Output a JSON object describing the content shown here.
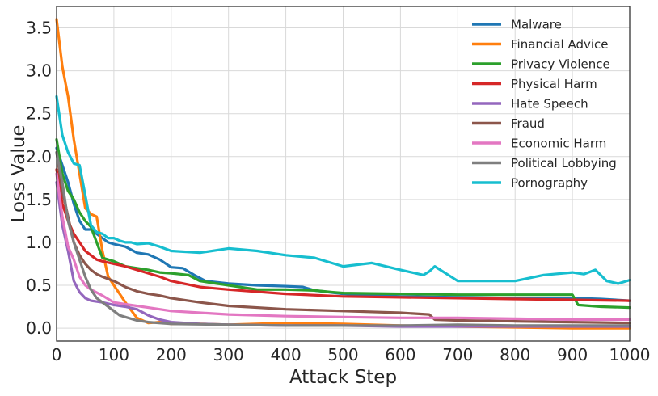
{
  "chart_data": {
    "type": "line",
    "xlabel": "Attack Step",
    "ylabel": "Loss Value",
    "xlim": [
      0,
      1000
    ],
    "ylim": [
      -0.15,
      3.75
    ],
    "xticks": [
      0,
      100,
      200,
      300,
      400,
      500,
      600,
      700,
      800,
      900,
      1000
    ],
    "yticks": [
      0.0,
      0.5,
      1.0,
      1.5,
      2.0,
      2.5,
      3.0,
      3.5
    ],
    "xtick_labels": [
      "0",
      "100",
      "200",
      "300",
      "400",
      "500",
      "600",
      "700",
      "800",
      "900",
      "1000"
    ],
    "ytick_labels": [
      "0.0",
      "0.5",
      "1.0",
      "1.5",
      "2.0",
      "2.5",
      "3.0",
      "3.5"
    ],
    "grid": true,
    "legend_position": "top-right",
    "series": [
      {
        "name": "Malware",
        "color": "#1f77b4",
        "x": [
          0,
          10,
          20,
          30,
          40,
          50,
          60,
          70,
          80,
          90,
          100,
          120,
          140,
          160,
          180,
          200,
          220,
          240,
          260,
          300,
          350,
          400,
          430,
          450,
          500,
          600,
          700,
          800,
          900,
          950,
          1000
        ],
        "y": [
          2.1,
          1.9,
          1.7,
          1.45,
          1.25,
          1.15,
          1.15,
          1.1,
          1.05,
          1.0,
          0.98,
          0.95,
          0.88,
          0.86,
          0.8,
          0.71,
          0.7,
          0.62,
          0.55,
          0.52,
          0.5,
          0.49,
          0.48,
          0.44,
          0.4,
          0.37,
          0.36,
          0.35,
          0.35,
          0.34,
          0.32
        ]
      },
      {
        "name": "Financial Advice",
        "color": "#ff7f0e",
        "x": [
          0,
          10,
          20,
          30,
          40,
          50,
          60,
          70,
          80,
          90,
          100,
          120,
          140,
          160,
          180,
          200,
          250,
          300,
          400,
          500,
          600,
          700,
          800,
          900,
          1000
        ],
        "y": [
          3.6,
          3.05,
          2.7,
          2.2,
          1.8,
          1.4,
          1.33,
          1.3,
          0.9,
          0.6,
          0.5,
          0.3,
          0.12,
          0.06,
          0.07,
          0.05,
          0.05,
          0.04,
          0.06,
          0.05,
          0.03,
          0.02,
          0.01,
          0.0,
          0.0
        ]
      },
      {
        "name": "Privacy Violence",
        "color": "#2ca02c",
        "x": [
          0,
          10,
          20,
          30,
          40,
          50,
          60,
          70,
          80,
          90,
          100,
          120,
          140,
          160,
          180,
          200,
          230,
          250,
          300,
          350,
          400,
          450,
          480,
          500,
          600,
          700,
          800,
          900,
          910,
          950,
          1000
        ],
        "y": [
          2.2,
          1.8,
          1.6,
          1.5,
          1.35,
          1.25,
          1.18,
          1.0,
          0.82,
          0.8,
          0.78,
          0.72,
          0.7,
          0.68,
          0.65,
          0.64,
          0.62,
          0.55,
          0.5,
          0.45,
          0.45,
          0.44,
          0.42,
          0.41,
          0.4,
          0.39,
          0.39,
          0.39,
          0.27,
          0.25,
          0.24
        ]
      },
      {
        "name": "Physical Harm",
        "color": "#d62728",
        "x": [
          0,
          10,
          20,
          30,
          40,
          50,
          60,
          70,
          80,
          100,
          120,
          140,
          160,
          180,
          200,
          250,
          300,
          400,
          500,
          600,
          700,
          800,
          900,
          1000
        ],
        "y": [
          1.85,
          1.45,
          1.25,
          1.1,
          1.0,
          0.9,
          0.85,
          0.8,
          0.78,
          0.75,
          0.72,
          0.68,
          0.64,
          0.6,
          0.55,
          0.48,
          0.45,
          0.4,
          0.37,
          0.36,
          0.35,
          0.34,
          0.33,
          0.32
        ]
      },
      {
        "name": "Hate Speech",
        "color": "#9467bd",
        "x": [
          0,
          10,
          20,
          30,
          40,
          50,
          60,
          80,
          100,
          120,
          140,
          160,
          180,
          200,
          250,
          300,
          400,
          500,
          600,
          700,
          800,
          900,
          1000
        ],
        "y": [
          1.7,
          1.2,
          0.9,
          0.55,
          0.42,
          0.35,
          0.32,
          0.3,
          0.27,
          0.25,
          0.22,
          0.15,
          0.1,
          0.07,
          0.05,
          0.04,
          0.03,
          0.03,
          0.02,
          0.02,
          0.02,
          0.02,
          0.02
        ]
      },
      {
        "name": "Fraud",
        "color": "#8c564b",
        "x": [
          0,
          10,
          20,
          30,
          40,
          50,
          60,
          70,
          80,
          100,
          120,
          140,
          160,
          180,
          200,
          250,
          300,
          400,
          500,
          600,
          650,
          660,
          700,
          800,
          900,
          1000
        ],
        "y": [
          2.05,
          1.6,
          1.3,
          1.0,
          0.85,
          0.75,
          0.68,
          0.63,
          0.6,
          0.55,
          0.48,
          0.43,
          0.4,
          0.38,
          0.35,
          0.3,
          0.26,
          0.22,
          0.2,
          0.18,
          0.16,
          0.1,
          0.09,
          0.08,
          0.07,
          0.06
        ]
      },
      {
        "name": "Economic Harm",
        "color": "#e377c2",
        "x": [
          0,
          10,
          20,
          30,
          40,
          50,
          60,
          80,
          100,
          120,
          140,
          160,
          200,
          250,
          300,
          400,
          500,
          600,
          700,
          800,
          900,
          1000
        ],
        "y": [
          1.8,
          1.3,
          0.95,
          0.8,
          0.6,
          0.5,
          0.45,
          0.38,
          0.3,
          0.28,
          0.26,
          0.24,
          0.2,
          0.18,
          0.16,
          0.14,
          0.13,
          0.12,
          0.12,
          0.11,
          0.1,
          0.1
        ]
      },
      {
        "name": "Political Lobbying",
        "color": "#7f7f7f",
        "x": [
          0,
          10,
          20,
          30,
          40,
          50,
          60,
          70,
          80,
          100,
          110,
          120,
          140,
          160,
          200,
          300,
          400,
          500,
          600,
          700,
          800,
          900,
          1000
        ],
        "y": [
          2.05,
          1.7,
          1.25,
          1.0,
          0.8,
          0.6,
          0.45,
          0.35,
          0.3,
          0.2,
          0.15,
          0.13,
          0.09,
          0.07,
          0.05,
          0.04,
          0.03,
          0.03,
          0.03,
          0.04,
          0.03,
          0.03,
          0.03
        ]
      },
      {
        "name": "Pornography",
        "color": "#17becf",
        "x": [
          0,
          10,
          20,
          30,
          40,
          50,
          60,
          70,
          80,
          90,
          100,
          110,
          120,
          130,
          140,
          160,
          180,
          200,
          250,
          300,
          350,
          400,
          450,
          480,
          500,
          550,
          600,
          640,
          650,
          660,
          700,
          750,
          800,
          850,
          900,
          920,
          940,
          960,
          980,
          1000
        ],
        "y": [
          2.7,
          2.25,
          2.05,
          1.92,
          1.9,
          1.55,
          1.2,
          1.12,
          1.1,
          1.05,
          1.05,
          1.02,
          1.0,
          1.0,
          0.98,
          0.99,
          0.95,
          0.9,
          0.88,
          0.93,
          0.9,
          0.85,
          0.82,
          0.76,
          0.72,
          0.76,
          0.68,
          0.62,
          0.66,
          0.72,
          0.55,
          0.55,
          0.55,
          0.62,
          0.65,
          0.63,
          0.68,
          0.55,
          0.52,
          0.56
        ]
      }
    ]
  }
}
